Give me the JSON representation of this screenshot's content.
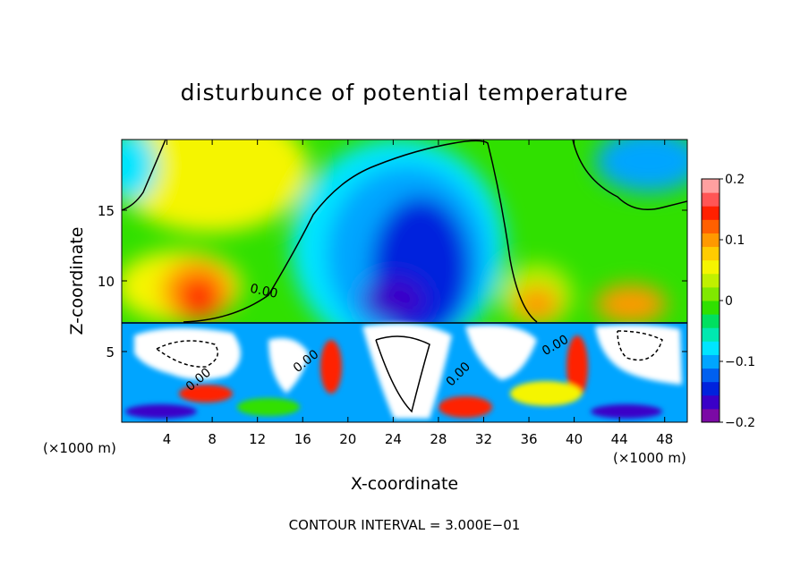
{
  "chart_data": {
    "type": "heatmap",
    "title": "disturbunce of potential temperature",
    "xlabel": "X-coordinate",
    "ylabel": "Z-coordinate",
    "x_unit_label": "(×1000 m)",
    "x_unit_label_right": "(×1000 m)",
    "xlim": [
      0,
      50
    ],
    "ylim": [
      0,
      20
    ],
    "xticks": [
      4,
      8,
      12,
      16,
      20,
      24,
      28,
      32,
      36,
      40,
      44,
      48
    ],
    "yticks": [
      5,
      10,
      15
    ],
    "colorbar": {
      "range": [
        -0.2,
        0.2
      ],
      "ticks": [
        0.2,
        0.1,
        0,
        -0.1,
        -0.2
      ],
      "tick_labels": [
        "0.2",
        "0.1",
        "0",
        "−0.1",
        "−0.2"
      ],
      "colors": [
        "#7b0aa5",
        "#3a00c8",
        "#0022dd",
        "#0060f0",
        "#00a5ff",
        "#00e5ff",
        "#00e8b0",
        "#00e060",
        "#30e000",
        "#80e800",
        "#c0f000",
        "#f5f500",
        "#ffcc00",
        "#ff9900",
        "#ff6000",
        "#ff2000",
        "#ff5555",
        "#ffa0a0"
      ]
    },
    "contour_labels": [
      "0.00",
      "0.00",
      "0.00",
      "0.00",
      "0.00"
    ],
    "contour_interval_text": "CONTOUR INTERVAL = 3.000E−01",
    "features": [
      {
        "x": 6.5,
        "z": 9.5,
        "value": 0.18
      },
      {
        "x": 25,
        "z": 9.5,
        "value": -0.2
      },
      {
        "x": 38,
        "z": 9.5,
        "value": 0.12
      },
      {
        "x": 46,
        "z": 9.5,
        "value": 0.12
      },
      {
        "x": 8,
        "z": 18,
        "value": 0.08
      },
      {
        "x": 45,
        "z": 18.5,
        "value": -0.08
      }
    ]
  }
}
